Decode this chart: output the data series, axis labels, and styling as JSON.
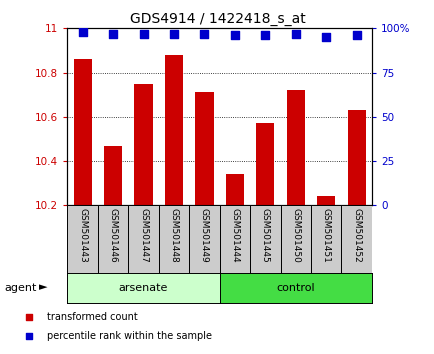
{
  "title": "GDS4914 / 1422418_s_at",
  "categories": [
    "GSM501443",
    "GSM501446",
    "GSM501447",
    "GSM501448",
    "GSM501449",
    "GSM501444",
    "GSM501445",
    "GSM501450",
    "GSM501451",
    "GSM501452"
  ],
  "bar_values": [
    10.86,
    10.47,
    10.75,
    10.88,
    10.71,
    10.34,
    10.57,
    10.72,
    10.24,
    10.63
  ],
  "percentile_values": [
    98,
    97,
    97,
    97,
    97,
    96,
    96,
    97,
    95,
    96
  ],
  "bar_color": "#cc0000",
  "percentile_color": "#0000cc",
  "ylim_left": [
    10.2,
    11.0
  ],
  "ylim_right": [
    0,
    100
  ],
  "yticks_left": [
    10.2,
    10.4,
    10.6,
    10.8,
    11.0
  ],
  "ytick_labels_left": [
    "10.2",
    "10.4",
    "10.6",
    "10.8",
    "11"
  ],
  "yticks_right": [
    0,
    25,
    50,
    75,
    100
  ],
  "ytick_labels_right": [
    "0",
    "25",
    "50",
    "75",
    "100%"
  ],
  "group_label_arsenate": "arsenate",
  "group_label_control": "control",
  "agent_label": "agent",
  "legend_bar_label": "transformed count",
  "legend_pct_label": "percentile rank within the sample",
  "arsenate_color": "#ccffcc",
  "control_color": "#44dd44",
  "label_box_color": "#cccccc",
  "n_arsenate": 5,
  "n_control": 5
}
